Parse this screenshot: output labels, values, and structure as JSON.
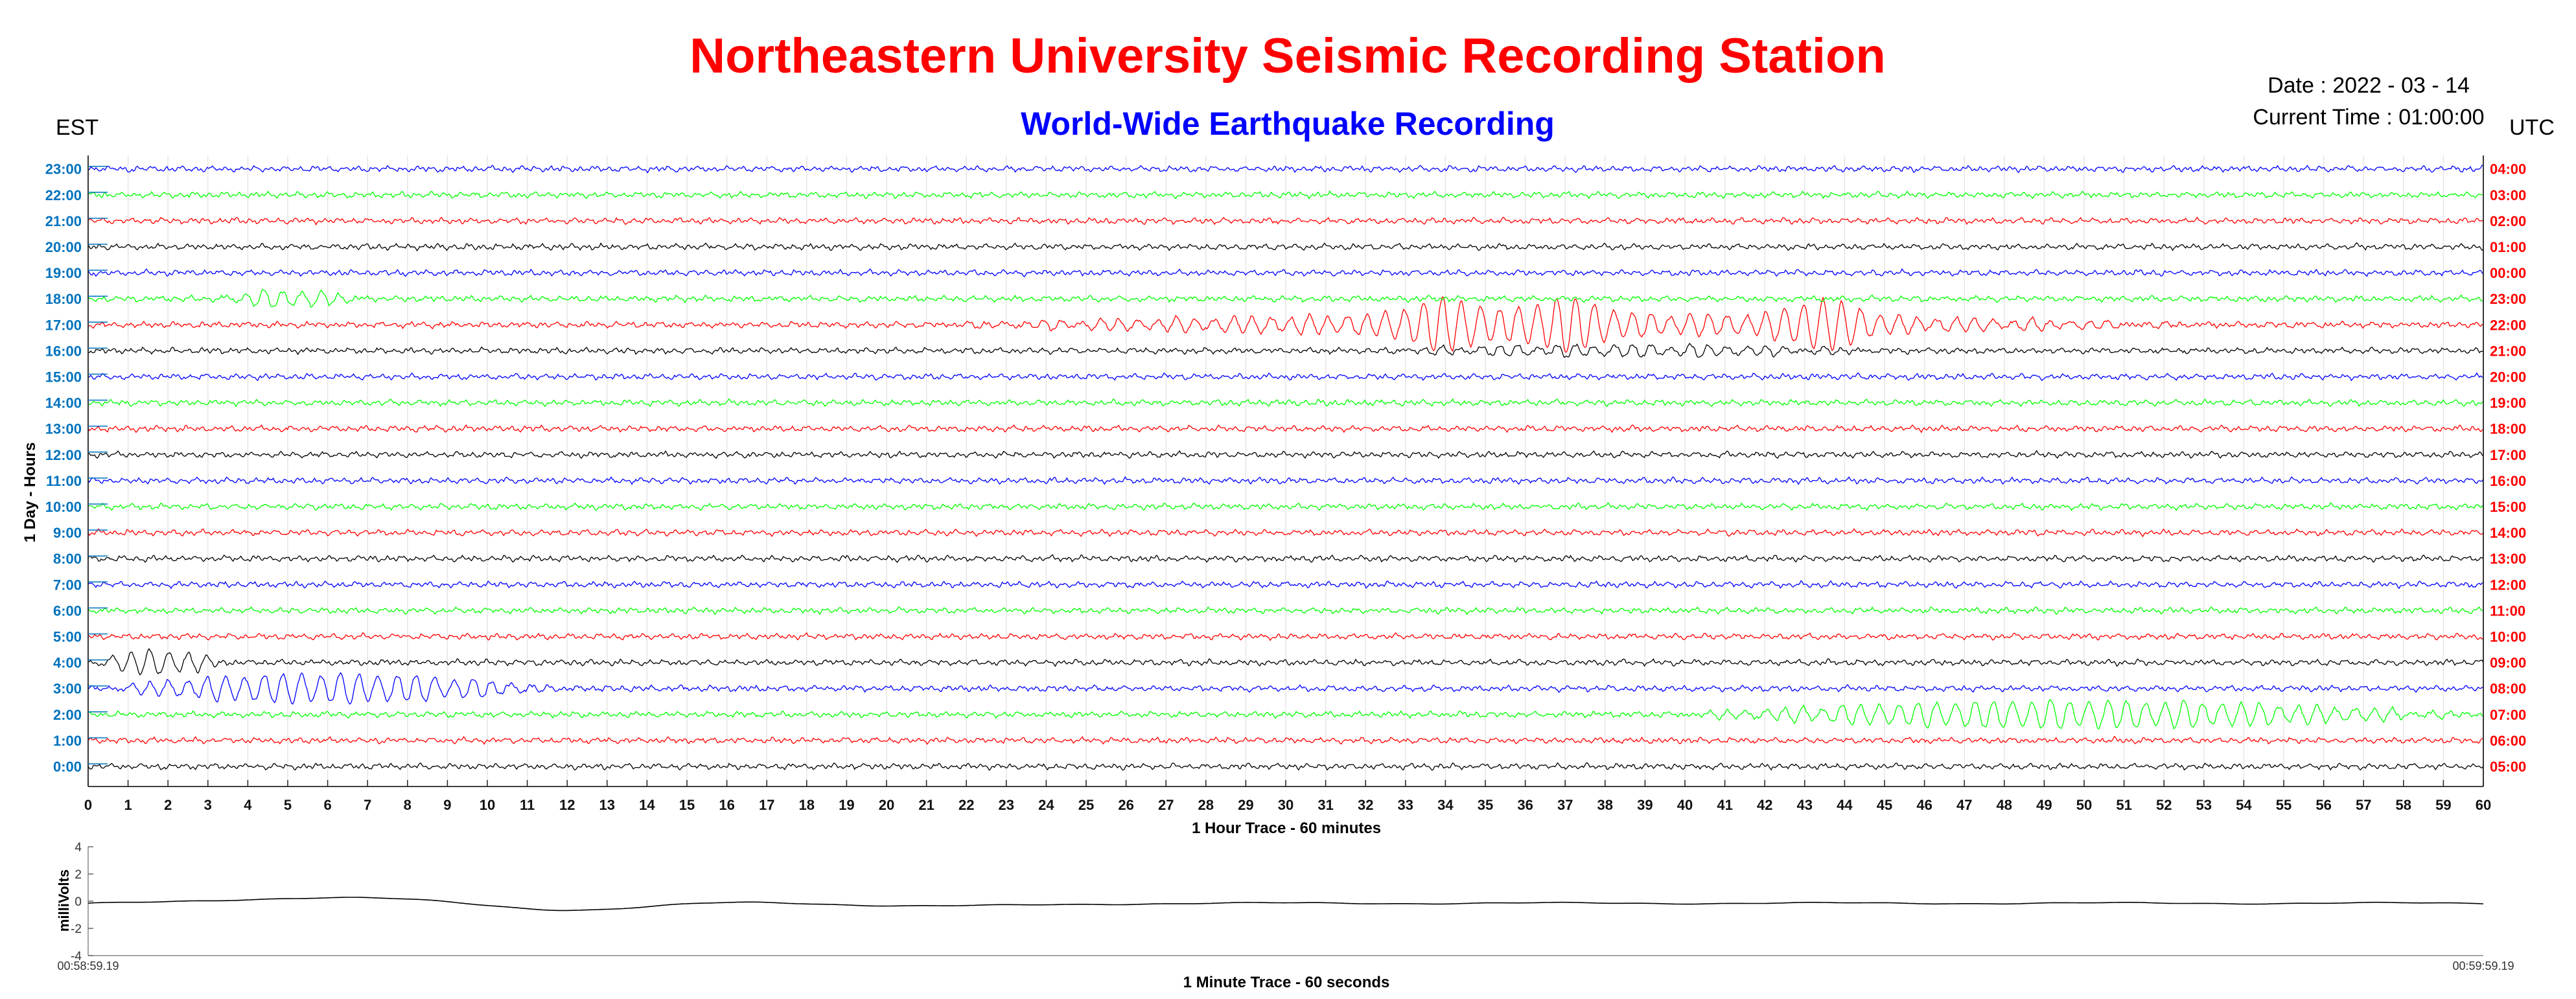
{
  "header": {
    "title": "Northeastern University Seismic Recording Station",
    "subtitle": "World-Wide Earthquake Recording",
    "date_text": "Date : 2022 - 03 - 14",
    "time_text": "Current Time : 01:00:00",
    "left_zone": "EST",
    "right_zone": "UTC"
  },
  "colors": {
    "title": "#ff0000",
    "subtitle": "#0000ff",
    "est_labels": "#0072bd",
    "utc_labels": "#ff0000",
    "trace_cycle": [
      "#000000",
      "#ff0000",
      "#00ff00",
      "#0000ff"
    ]
  },
  "chart_data": [
    {
      "type": "line",
      "name": "helicorder",
      "xlabel": "1 Hour Trace - 60 minutes",
      "ylabel": "1 Day - Hours",
      "xlim": [
        0,
        60
      ],
      "x_ticks": [
        "0",
        "1",
        "2",
        "3",
        "4",
        "5",
        "6",
        "7",
        "8",
        "9",
        "10",
        "11",
        "12",
        "13",
        "14",
        "15",
        "16",
        "17",
        "18",
        "19",
        "20",
        "21",
        "22",
        "23",
        "24",
        "25",
        "26",
        "27",
        "28",
        "29",
        "30",
        "31",
        "32",
        "33",
        "34",
        "35",
        "36",
        "37",
        "38",
        "39",
        "40",
        "41",
        "42",
        "43",
        "44",
        "45",
        "46",
        "47",
        "48",
        "49",
        "50",
        "51",
        "52",
        "53",
        "54",
        "55",
        "56",
        "57",
        "58",
        "59",
        "60"
      ],
      "est_hours": [
        "0:00",
        "1:00",
        "2:00",
        "3:00",
        "4:00",
        "5:00",
        "6:00",
        "7:00",
        "8:00",
        "9:00",
        "10:00",
        "11:00",
        "12:00",
        "13:00",
        "14:00",
        "15:00",
        "16:00",
        "17:00",
        "18:00",
        "19:00",
        "20:00",
        "21:00",
        "22:00",
        "23:00"
      ],
      "utc_hours": [
        "05:00",
        "06:00",
        "07:00",
        "08:00",
        "09:00",
        "10:00",
        "11:00",
        "12:00",
        "13:00",
        "14:00",
        "15:00",
        "16:00",
        "17:00",
        "18:00",
        "19:00",
        "20:00",
        "21:00",
        "22:00",
        "23:00",
        "00:00",
        "01:00",
        "02:00",
        "03:00",
        "04:00"
      ],
      "grid": true,
      "events": [
        {
          "hour": "17:00",
          "start_min": 20.5,
          "end_min": 53.5,
          "amplitude": 0.85,
          "peaks_min": [
            34.0,
            37.0,
            43.5
          ]
        },
        {
          "hour": "16:00",
          "start_min": 31.5,
          "end_min": 45.5,
          "amplitude": 0.2
        },
        {
          "hour": "3:00",
          "start_min": 0.0,
          "end_min": 12.0,
          "amplitude": 0.55
        },
        {
          "hour": "4:00",
          "start_min": 0.0,
          "end_min": 3.5,
          "amplitude": 0.45
        },
        {
          "hour": "2:00",
          "start_min": 39.5,
          "end_min": 60.0,
          "amplitude": 0.5
        },
        {
          "hour": "18:00",
          "start_min": 3.0,
          "end_min": 7.0,
          "amplitude": 0.3
        }
      ]
    },
    {
      "type": "line",
      "name": "minute-trace",
      "xlabel": "1 Minute Trace  - 60 seconds",
      "ylabel": "milliVolts",
      "ylim": [
        -4,
        4
      ],
      "y_ticks": [
        "4",
        "2",
        "0",
        "-2",
        "-4"
      ],
      "x_start_label": "00:58:59.19",
      "x_end_label": "00:59:59.19",
      "grid": false
    }
  ]
}
